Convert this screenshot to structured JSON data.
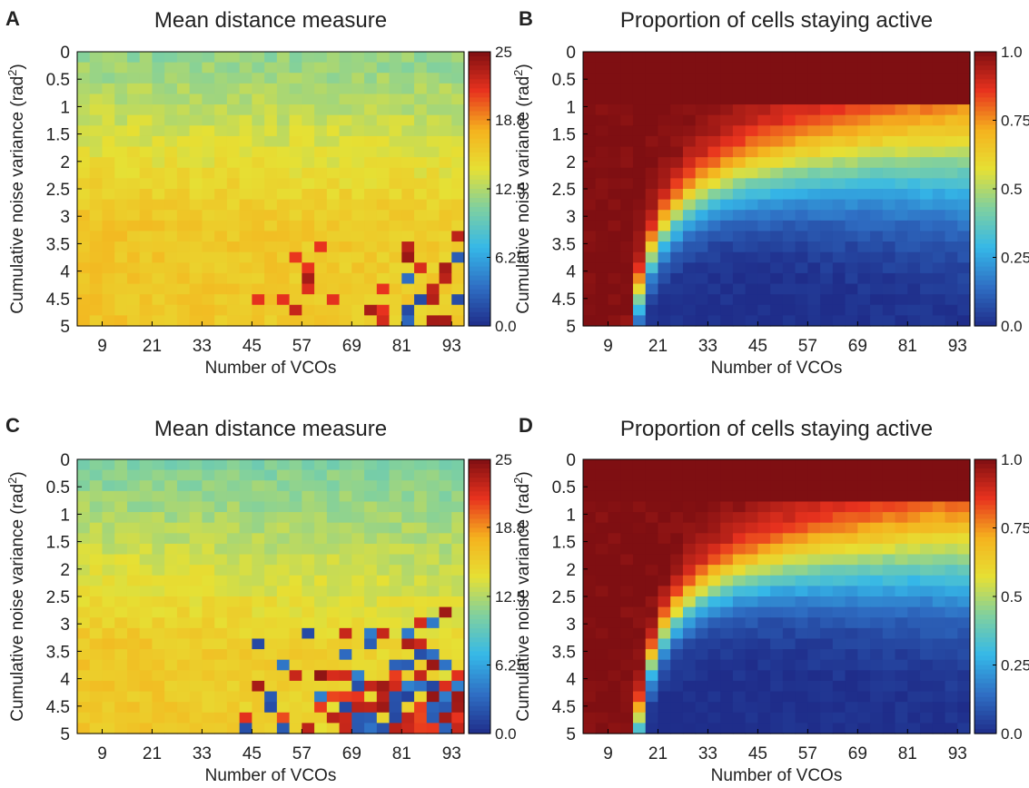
{
  "colormap": [
    "#1f2d8a",
    "#2f6fc4",
    "#35b8e8",
    "#7fd0a0",
    "#e6e034",
    "#f5b21e",
    "#e8321e",
    "#7f0f12"
  ],
  "chart_data": [
    {
      "panel": "A",
      "type": "heatmap",
      "title": "Mean distance measure",
      "xlabel": "Number of VCOs",
      "ylabel": "Cumulative noise variance (rad²)",
      "x_ticks": [
        "9",
        "21",
        "33",
        "45",
        "57",
        "69",
        "81",
        "93"
      ],
      "y_ticks": [
        "0",
        "0.5",
        "1",
        "1.5",
        "2",
        "2.5",
        "3",
        "3.5",
        "4",
        "4.5",
        "5"
      ],
      "xlim": [
        3,
        96
      ],
      "ylim": [
        0,
        5
      ],
      "colorbar_ticks": [
        "25",
        "18.8",
        "12.5",
        "6.25",
        "0.0"
      ],
      "clim": [
        0,
        25
      ],
      "model": "dist_weak",
      "grid": false
    },
    {
      "panel": "B",
      "type": "heatmap",
      "title": "Proportion of cells staying active",
      "xlabel": "Number of VCOs",
      "ylabel": "Cumulative noise variance (rad²)",
      "x_ticks": [
        "9",
        "21",
        "33",
        "45",
        "57",
        "69",
        "81",
        "93"
      ],
      "y_ticks": [
        "0",
        "0.5",
        "1",
        "1.5",
        "2",
        "2.5",
        "3",
        "3.5",
        "4",
        "4.5",
        "5"
      ],
      "xlim": [
        3,
        96
      ],
      "ylim": [
        0,
        5
      ],
      "colorbar_ticks": [
        "1.0",
        "0.75",
        "0.5",
        "0.25",
        "0.0"
      ],
      "clim": [
        0,
        1
      ],
      "model": "prop_weak",
      "grid": false
    },
    {
      "panel": "C",
      "type": "heatmap",
      "title": "Mean distance measure",
      "xlabel": "Number of VCOs",
      "ylabel": "Cumulative noise variance (rad²)",
      "x_ticks": [
        "9",
        "21",
        "33",
        "45",
        "57",
        "69",
        "81",
        "93"
      ],
      "y_ticks": [
        "0",
        "0.5",
        "1",
        "1.5",
        "2",
        "2.5",
        "3",
        "3.5",
        "4",
        "4.5",
        "5"
      ],
      "xlim": [
        3,
        96
      ],
      "ylim": [
        0,
        5
      ],
      "colorbar_ticks": [
        "25",
        "18.8",
        "12.5",
        "6.25",
        "0.0"
      ],
      "clim": [
        0,
        25
      ],
      "model": "dist_strong",
      "grid": false
    },
    {
      "panel": "D",
      "type": "heatmap",
      "title": "Proportion of cells staying active",
      "xlabel": "Number of VCOs",
      "ylabel": "Cumulative noise variance (rad²)",
      "x_ticks": [
        "9",
        "21",
        "33",
        "45",
        "57",
        "69",
        "81",
        "93"
      ],
      "y_ticks": [
        "0",
        "0.5",
        "1",
        "1.5",
        "2",
        "2.5",
        "3",
        "3.5",
        "4",
        "4.5",
        "5"
      ],
      "xlim": [
        3,
        96
      ],
      "ylim": [
        0,
        5
      ],
      "colorbar_ticks": [
        "1.0",
        "0.75",
        "0.5",
        "0.25",
        "0.0"
      ],
      "clim": [
        0,
        1
      ],
      "model": "prop_strong",
      "grid": false
    }
  ]
}
